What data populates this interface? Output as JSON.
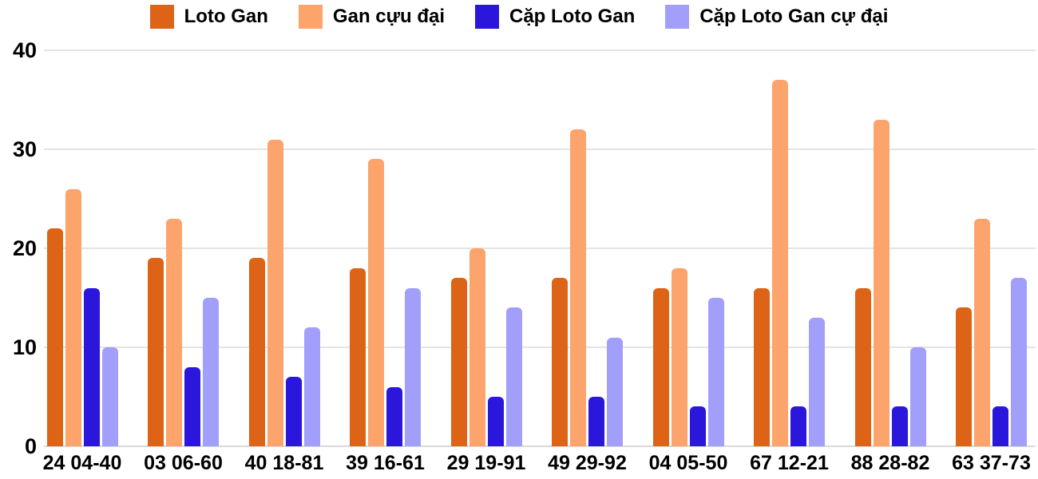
{
  "chart_data": {
    "type": "bar",
    "title": "",
    "xlabel": "",
    "ylabel": "",
    "categories": [
      "24 04-40",
      "03 06-60",
      "40 18-81",
      "39 16-61",
      "29 19-91",
      "49 29-92",
      "04 05-50",
      "67 12-21",
      "88 28-82",
      "63 37-73"
    ],
    "series": [
      {
        "name": "Loto Gan",
        "color": "#dd6317",
        "values": [
          22,
          19,
          19,
          18,
          17,
          17,
          16,
          16,
          16,
          14
        ]
      },
      {
        "name": "Gan cựu đại",
        "color": "#fca46c",
        "values": [
          26,
          23,
          31,
          29,
          20,
          32,
          18,
          37,
          33,
          23
        ]
      },
      {
        "name": "Cặp Loto Gan",
        "color": "#2b16dc",
        "values": [
          16,
          8,
          7,
          6,
          5,
          5,
          4,
          4,
          4,
          4
        ]
      },
      {
        "name": "Cặp Loto Gan cự đại",
        "color": "#a29ffa",
        "values": [
          10,
          15,
          12,
          16,
          14,
          11,
          15,
          13,
          10,
          17
        ]
      }
    ],
    "ylim": [
      0,
      40
    ],
    "yticks": [
      0,
      10,
      20,
      30,
      40
    ],
    "grid": true,
    "legend_position": "top"
  },
  "colors": {
    "background": "#ffffff",
    "grid": "#e4e4e4",
    "axis_text": "#000000"
  }
}
